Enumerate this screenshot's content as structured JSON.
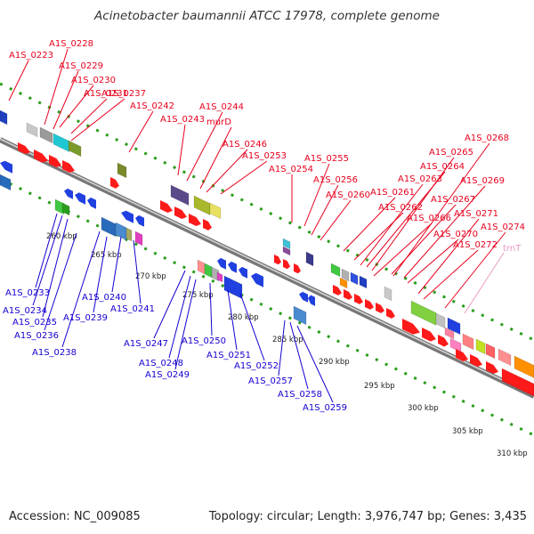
{
  "title": "Acinetobacter baumannii ATCC 17978, complete genome",
  "footer": {
    "accession": "Accession: NC_009085",
    "summary": "Topology: circular; Length: 3,976,747 bp; Genes: 3,435"
  },
  "colors": {
    "forward_label": "#e8001c",
    "reverse_label": "#1400d0",
    "trna_label": "#e99ac3"
  },
  "ticks": [
    "260 kbp",
    "265 kbp",
    "270 kbp",
    "275 kbp",
    "280 kbp",
    "285 kbp",
    "290 kbp",
    "295 kbp",
    "300 kbp",
    "305 kbp",
    "310 kbp"
  ],
  "forward_genes": [
    "A1S_0223",
    "A1S_0228",
    "A1S_0229",
    "A1S_0230",
    "A1S_0231",
    "A1S_0237",
    "A1S_0242",
    "A1S_0243",
    "A1S_0244",
    "murD",
    "A1S_0246",
    "A1S_0253",
    "A1S_0254",
    "A1S_0255",
    "A1S_0256",
    "A1S_0260",
    "A1S_0261",
    "A1S_0262",
    "A1S_0263",
    "A1S_0264",
    "A1S_0265",
    "A1S_0266",
    "A1S_0267",
    "A1S_0268",
    "A1S_0269",
    "A1S_0270",
    "A1S_0271",
    "A1S_0272",
    "A1S_0274"
  ],
  "trna_genes": [
    "trnT"
  ],
  "reverse_genes": [
    "A1S_0233",
    "A1S_0234",
    "A1S_0235",
    "A1S_0236",
    "A1S_0238",
    "A1S_0239",
    "A1S_0240",
    "A1S_0241",
    "A1S_0247",
    "A1S_0248",
    "A1S_0249",
    "A1S_0250",
    "A1S_0251",
    "A1S_0252",
    "A1S_0257",
    "A1S_0258",
    "A1S_0259"
  ]
}
